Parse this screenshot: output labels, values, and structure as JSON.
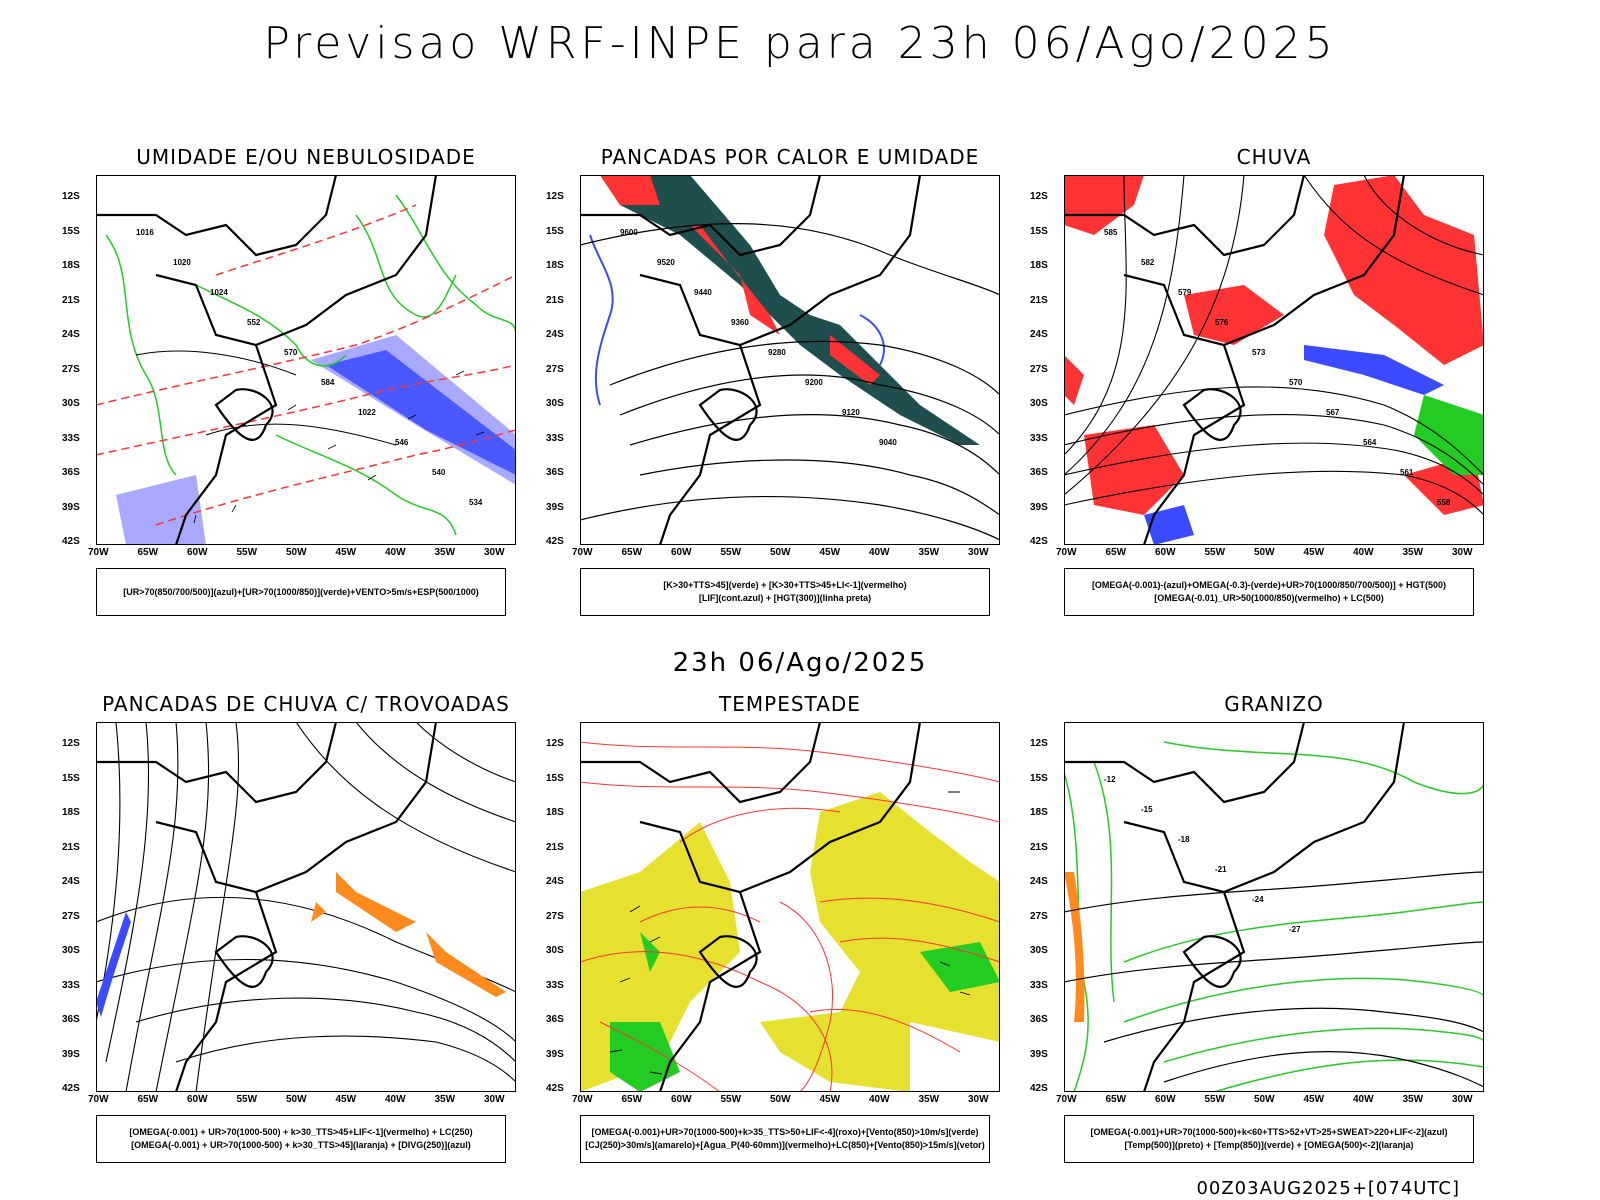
{
  "title": "Previsao WRF-INPE  para 23h 06/Ago/2025",
  "mid_time": "23h 06/Ago/2025",
  "footer": "00Z03AUG2025+[074UTC]",
  "axes": {
    "lat_labels": [
      "12S",
      "15S",
      "18S",
      "21S",
      "24S",
      "27S",
      "30S",
      "33S",
      "36S",
      "39S",
      "42S"
    ],
    "lon_labels": [
      "70W",
      "65W",
      "60W",
      "55W",
      "50W",
      "45W",
      "40W",
      "35W",
      "30W"
    ]
  },
  "panels": [
    {
      "title": "UMIDADE E/OU NEBULOSIDADE",
      "legend": [
        "[UR>70(850/700/500)](azul)+[UR>70(1000/850)](verde)+VENTO>5m/s+ESP(500/1000)"
      ],
      "contour_labels": [
        "1016",
        "1020",
        "1024",
        "552",
        "570",
        "584",
        "1022",
        "546",
        "540",
        "534"
      ]
    },
    {
      "title": "PANCADAS POR CALOR E UMIDADE",
      "legend": [
        "[K>30+TTS>45](verde) + [K>30+TTS>45+LI<-1](vermelho)",
        "[LIF](cont.azul) + [HGT(300)](linha preta)"
      ],
      "contour_labels": [
        "9600",
        "9520",
        "9440",
        "9360",
        "9280",
        "9200",
        "9120",
        "9040"
      ]
    },
    {
      "title": "CHUVA",
      "legend": [
        "[OMEGA(-0.001)-(azul)+OMEGA(-0.3)-(verde)+UR>70(1000/850/700/500)] + HGT(500)",
        "[OMEGA(-0.01)_UR>50(1000/850)(vermelho) + LC(500)"
      ],
      "contour_labels": [
        "585",
        "582",
        "579",
        "576",
        "573",
        "570",
        "567",
        "564",
        "561",
        "558"
      ]
    },
    {
      "title": "PANCADAS DE CHUVA C/ TROVOADAS",
      "legend": [
        "[OMEGA(-0.001) + UR>70(1000-500) + k>30_TTS>45+LIF<-1](vermelho) + LC(250)",
        "[OMEGA(-0.001) + UR>70(1000-500) + k>30_TTS>45](laranja) + [DIVG(250)](azul)"
      ],
      "contour_labels": []
    },
    {
      "title": "TEMPESTADE",
      "legend": [
        "[OMEGA(-0.001)+UR>70(1000-500)+k>35_TTS>50+LIF<-4](roxo)+[Vento(850)>10m/s](verde)",
        "[CJ(250)>30m/s](amarelo)+[Agua_P(40-60mm)](vermelho)+LC(850)+[Vento(850)>15m/s](vetor)"
      ],
      "contour_labels": []
    },
    {
      "title": "GRANIZO",
      "legend": [
        "[OMEGA(-0.001)+UR>70(1000-500)+k<60+TTS>52+VT>25+SWEAT>220+LIF<-2](azul)",
        "[Temp(500)](preto) + [Temp(850)](verde) + [OMEGA(500)<-2](laranja)"
      ],
      "contour_labels": [
        "-12",
        "-15",
        "-18",
        "-21",
        "-24",
        "-27"
      ]
    }
  ],
  "colors": {
    "blue": "#3a4bff",
    "lightblue": "#a9aaff",
    "green": "#22cc22",
    "red": "#ff3333",
    "darkteal": "#1f4e4e",
    "orange": "#ff8a1e",
    "yellow": "#e6e02e"
  }
}
